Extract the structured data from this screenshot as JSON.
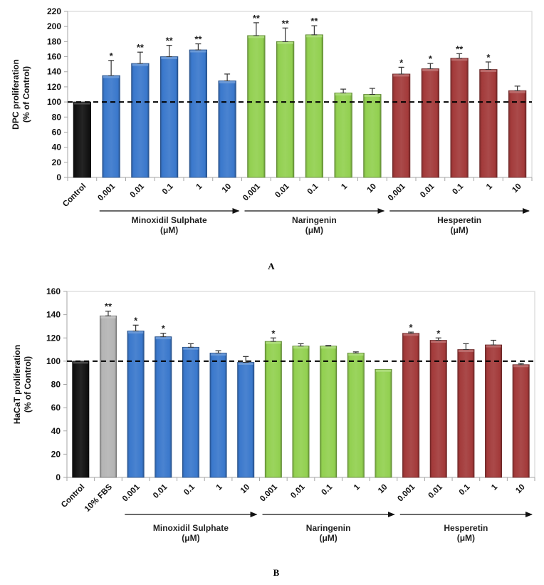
{
  "colors": {
    "control": "#111111",
    "fbs": "#b4b4b4",
    "minoxidil": "#3a78cc",
    "naringenin": "#92d050",
    "hesperetin": "#a33a3a",
    "grid": "#d9d9d9"
  },
  "chart_data": [
    {
      "type": "bar",
      "panel_label": "A",
      "ylabel": "DPC proliferation\n(% of Control)",
      "ylabel_lines": [
        "DPC proliferation",
        "(% of Control)"
      ],
      "ylim": [
        0,
        220
      ],
      "yticks": [
        0,
        20,
        40,
        60,
        80,
        100,
        120,
        140,
        160,
        180,
        200,
        220
      ],
      "reference_line": 100,
      "categories": [
        "Control",
        "0.001",
        "0.01",
        "0.1",
        "1",
        "10",
        "0.001",
        "0.01",
        "0.1",
        "1",
        "10",
        "0.001",
        "0.01",
        "0.1",
        "1",
        "10"
      ],
      "groups": [
        "control",
        "minoxidil",
        "minoxidil",
        "minoxidil",
        "minoxidil",
        "minoxidil",
        "naringenin",
        "naringenin",
        "naringenin",
        "naringenin",
        "naringenin",
        "hesperetin",
        "hesperetin",
        "hesperetin",
        "hesperetin",
        "hesperetin"
      ],
      "values": [
        100,
        135,
        151,
        160,
        169,
        128,
        188,
        180,
        189,
        112,
        110,
        137,
        144,
        158,
        143,
        115
      ],
      "error_upper": [
        100,
        155,
        166,
        175,
        177,
        137,
        205,
        198,
        201,
        117,
        118,
        146,
        151,
        164,
        153,
        121
      ],
      "significance": [
        "",
        "*",
        "**",
        "**",
        "**",
        "",
        "**",
        "**",
        "**",
        "",
        "",
        "*",
        "*",
        "**",
        "*",
        ""
      ],
      "group_labels": [
        {
          "name": "Minoxidil Sulphate",
          "unit": "(μM)",
          "from": 1,
          "to": 5
        },
        {
          "name": "Naringenin",
          "unit": "(μM)",
          "from": 6,
          "to": 10
        },
        {
          "name": "Hesperetin",
          "unit": "(μM)",
          "from": 11,
          "to": 15
        }
      ]
    },
    {
      "type": "bar",
      "panel_label": "B",
      "ylabel_lines": [
        "HaCaT proliferation",
        "(% of Control)"
      ],
      "ylim": [
        0,
        160
      ],
      "yticks": [
        0,
        20,
        40,
        60,
        80,
        100,
        120,
        140,
        160
      ],
      "reference_line": 100,
      "categories": [
        "Control",
        "10% FBS",
        "0.001",
        "0.01",
        "0.1",
        "1",
        "10",
        "0.001",
        "0.01",
        "0.1",
        "1",
        "10",
        "0.001",
        "0.01",
        "0.1",
        "1",
        "10"
      ],
      "groups": [
        "control",
        "fbs",
        "minoxidil",
        "minoxidil",
        "minoxidil",
        "minoxidil",
        "minoxidil",
        "naringenin",
        "naringenin",
        "naringenin",
        "naringenin",
        "naringenin",
        "hesperetin",
        "hesperetin",
        "hesperetin",
        "hesperetin",
        "hesperetin"
      ],
      "values": [
        100,
        139,
        126,
        121,
        112,
        107,
        99,
        117,
        113,
        113,
        107,
        93,
        124,
        118,
        110,
        114,
        97
      ],
      "error_upper": [
        100,
        143,
        131,
        124,
        115,
        109,
        104,
        120,
        115,
        113.5,
        108,
        93,
        125,
        120,
        115,
        118,
        98
      ],
      "significance": [
        "",
        "**",
        "*",
        "*",
        "",
        "",
        "",
        "*",
        "",
        "",
        "",
        "",
        "*",
        "*",
        "",
        "",
        ""
      ],
      "group_labels": [
        {
          "name": "Minoxidil Sulphate",
          "unit": "(μM)",
          "from": 2,
          "to": 6
        },
        {
          "name": "Naringenin",
          "unit": "(μM)",
          "from": 7,
          "to": 11
        },
        {
          "name": "Hesperetin",
          "unit": "(μM)",
          "from": 12,
          "to": 16
        }
      ]
    }
  ]
}
